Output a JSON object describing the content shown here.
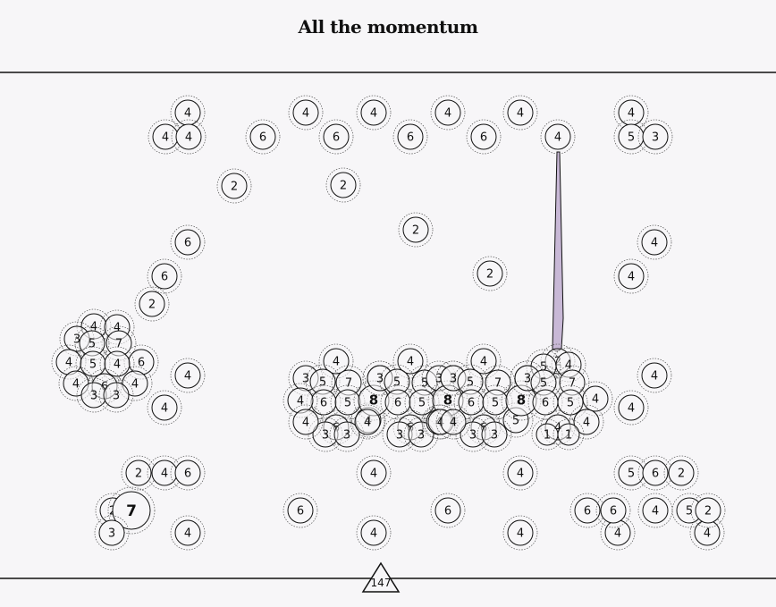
{
  "title": "All the momentum",
  "page_number": "147",
  "colors": {
    "background": "#f7f6f8",
    "ink": "#111111",
    "ring": "#555555",
    "pointer_fill": "#c8b8d6"
  },
  "tokens": [
    {
      "id": "t1",
      "label": "4"
    },
    {
      "id": "t2",
      "label": "4"
    },
    {
      "id": "t3",
      "label": "4"
    },
    {
      "id": "t4",
      "label": "6"
    },
    {
      "id": "t5",
      "label": "4"
    },
    {
      "id": "t6",
      "label": "6"
    },
    {
      "id": "t7",
      "label": "4"
    },
    {
      "id": "t8",
      "label": "6"
    },
    {
      "id": "t9",
      "label": "4"
    },
    {
      "id": "t10",
      "label": "6"
    },
    {
      "id": "t11",
      "label": "4"
    },
    {
      "id": "t12",
      "label": "4"
    },
    {
      "id": "t13",
      "label": "4"
    },
    {
      "id": "t14",
      "label": "5"
    },
    {
      "id": "t15",
      "label": "3"
    },
    {
      "id": "t16",
      "label": "2"
    },
    {
      "id": "t17",
      "label": "2"
    },
    {
      "id": "t18",
      "label": "2"
    },
    {
      "id": "t19",
      "label": "2"
    },
    {
      "id": "t20",
      "label": "6"
    },
    {
      "id": "t21",
      "label": "6"
    },
    {
      "id": "t22",
      "label": "2"
    },
    {
      "id": "t23",
      "label": "4"
    },
    {
      "id": "t24",
      "label": "4"
    },
    {
      "id": "t25",
      "label": "4"
    },
    {
      "id": "t26",
      "label": "4"
    },
    {
      "id": "t27",
      "label": "4"
    },
    {
      "id": "t28",
      "label": "4"
    },
    {
      "id": "t29",
      "label": "2"
    },
    {
      "id": "t30",
      "label": "4"
    },
    {
      "id": "t31",
      "label": "6"
    },
    {
      "id": "t32",
      "label": "4"
    },
    {
      "id": "t33",
      "label": "4"
    },
    {
      "id": "t34",
      "label": "5"
    },
    {
      "id": "t35",
      "label": "6"
    },
    {
      "id": "t36",
      "label": "2"
    },
    {
      "id": "t37",
      "label": "2"
    },
    {
      "id": "t38",
      "label": "7"
    },
    {
      "id": "t39",
      "label": "3"
    },
    {
      "id": "t40",
      "label": "4"
    },
    {
      "id": "t41",
      "label": "6"
    },
    {
      "id": "t42",
      "label": "4"
    },
    {
      "id": "t43",
      "label": "6"
    },
    {
      "id": "t44",
      "label": "4"
    },
    {
      "id": "t45",
      "label": "4"
    },
    {
      "id": "t46",
      "label": "6"
    },
    {
      "id": "t47",
      "label": "6"
    },
    {
      "id": "t48",
      "label": "4"
    },
    {
      "id": "t49",
      "label": "5"
    },
    {
      "id": "t50",
      "label": "2"
    },
    {
      "id": "t51",
      "label": "4"
    }
  ],
  "clusters": [
    {
      "id": "left",
      "labels": [
        "4",
        "4",
        "7",
        "3",
        "5",
        "4",
        "6",
        "5",
        "4",
        "4",
        "6",
        "4",
        "3",
        "3"
      ]
    },
    {
      "id": "c1",
      "labels": [
        "4",
        "3",
        "5",
        "7",
        "3",
        "4",
        "6",
        "5",
        "8",
        "4",
        "6",
        "3",
        "3",
        "4"
      ]
    },
    {
      "id": "c2",
      "labels": [
        "4",
        "3",
        "5",
        "5",
        "3",
        "3",
        "6",
        "5",
        "8",
        "4",
        "6",
        "3",
        "3",
        "4"
      ]
    },
    {
      "id": "c3",
      "labels": [
        "4",
        "3",
        "5",
        "7",
        "3",
        "5",
        "6",
        "5",
        "8",
        "4",
        "6",
        "3",
        "3",
        "4"
      ]
    },
    {
      "id": "c4",
      "labels": [
        "2",
        "4",
        "5",
        "3",
        "7",
        "5",
        "4",
        "6",
        "5",
        "4",
        "4",
        "1",
        "1"
      ]
    }
  ]
}
